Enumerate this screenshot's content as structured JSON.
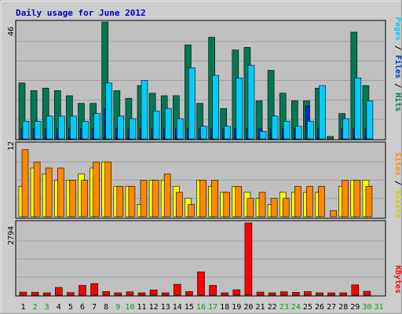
{
  "chart_data": [
    {
      "type": "bar",
      "title": "Daily usage for June 2012",
      "panel": "hits-files-pages",
      "ylim": [
        0,
        46
      ],
      "y_tick_labels": [
        "46"
      ],
      "legend": [
        {
          "label": "Pages",
          "color": "#00CCFF"
        },
        {
          "label": "Files",
          "color": "#0033CC"
        },
        {
          "label": "Hits",
          "color": "#007755"
        }
      ],
      "legend_separator": " / ",
      "categories": [
        "1",
        "2",
        "3",
        "4",
        "5",
        "6",
        "7",
        "8",
        "9",
        "10",
        "11",
        "12",
        "13",
        "14",
        "15",
        "16",
        "17",
        "18",
        "19",
        "20",
        "21",
        "22",
        "23",
        "24",
        "25",
        "26",
        "27",
        "28",
        "29",
        "30",
        "31"
      ],
      "series": [
        {
          "name": "Hits",
          "values": [
            22,
            19,
            20,
            19,
            17,
            14,
            14,
            46,
            19,
            16,
            21,
            18,
            17,
            17,
            37,
            14,
            40,
            12,
            35,
            36,
            15,
            27,
            18,
            15,
            15,
            20,
            1,
            10,
            42,
            21,
            0
          ]
        },
        {
          "name": "Files",
          "values": [
            4,
            4,
            4,
            4,
            4,
            4,
            4,
            12,
            4,
            4,
            4,
            4,
            4,
            4,
            4,
            4,
            4,
            4,
            4,
            4,
            4,
            4,
            4,
            4,
            13,
            4,
            0,
            4,
            4,
            4,
            0
          ]
        },
        {
          "name": "Pages",
          "values": [
            7,
            7,
            9,
            9,
            9,
            7,
            10,
            22,
            9,
            8,
            23,
            11,
            12,
            8,
            28,
            5,
            25,
            5,
            24,
            29,
            3,
            9,
            7,
            5,
            7,
            21,
            0,
            8,
            24,
            15,
            0
          ]
        }
      ]
    },
    {
      "type": "bar",
      "panel": "sites-visits",
      "ylim": [
        0,
        12
      ],
      "y_tick_labels": [
        "12"
      ],
      "legend": [
        {
          "label": "Sites",
          "color": "#FF8800"
        },
        {
          "label": "Visits",
          "color": "#FFFF00"
        }
      ],
      "legend_separator": " / ",
      "categories": [
        "1",
        "2",
        "3",
        "4",
        "5",
        "6",
        "7",
        "8",
        "9",
        "10",
        "11",
        "12",
        "13",
        "14",
        "15",
        "16",
        "17",
        "18",
        "19",
        "20",
        "21",
        "22",
        "23",
        "24",
        "25",
        "26",
        "27",
        "28",
        "29",
        "30",
        "31"
      ],
      "series": [
        {
          "name": "Visits",
          "values": [
            5,
            8,
            7,
            6,
            6,
            7,
            8,
            9,
            5,
            5,
            2,
            6,
            6,
            5,
            3,
            6,
            5,
            4,
            5,
            4,
            3,
            2,
            4,
            4,
            4,
            4,
            0,
            5,
            6,
            6,
            0
          ]
        },
        {
          "name": "Sites",
          "values": [
            11,
            9,
            8,
            8,
            6,
            6,
            9,
            9,
            5,
            5,
            6,
            6,
            7,
            4,
            2,
            6,
            6,
            4,
            5,
            3,
            4,
            3,
            3,
            5,
            5,
            5,
            1,
            6,
            6,
            5,
            0
          ]
        }
      ]
    },
    {
      "type": "bar",
      "panel": "kbytes",
      "ylim": [
        0,
        2794
      ],
      "y_tick_labels": [
        "2794"
      ],
      "legend": [
        {
          "label": "KBytes",
          "color": "#FF0000"
        }
      ],
      "categories": [
        "1",
        "2",
        "3",
        "4",
        "5",
        "6",
        "7",
        "8",
        "9",
        "10",
        "11",
        "12",
        "13",
        "14",
        "15",
        "16",
        "17",
        "18",
        "19",
        "20",
        "21",
        "22",
        "23",
        "24",
        "25",
        "26",
        "27",
        "28",
        "29",
        "30",
        "31"
      ],
      "weekend_days": [
        "2",
        "3",
        "9",
        "10",
        "16",
        "17",
        "23",
        "24",
        "30",
        "31"
      ],
      "series": [
        {
          "name": "KBytes",
          "values": [
            120,
            110,
            60,
            300,
            100,
            380,
            450,
            140,
            60,
            130,
            90,
            200,
            40,
            420,
            140,
            900,
            380,
            40,
            210,
            2794,
            120,
            90,
            130,
            110,
            140,
            80,
            40,
            70,
            400,
            150,
            0
          ]
        }
      ]
    }
  ]
}
